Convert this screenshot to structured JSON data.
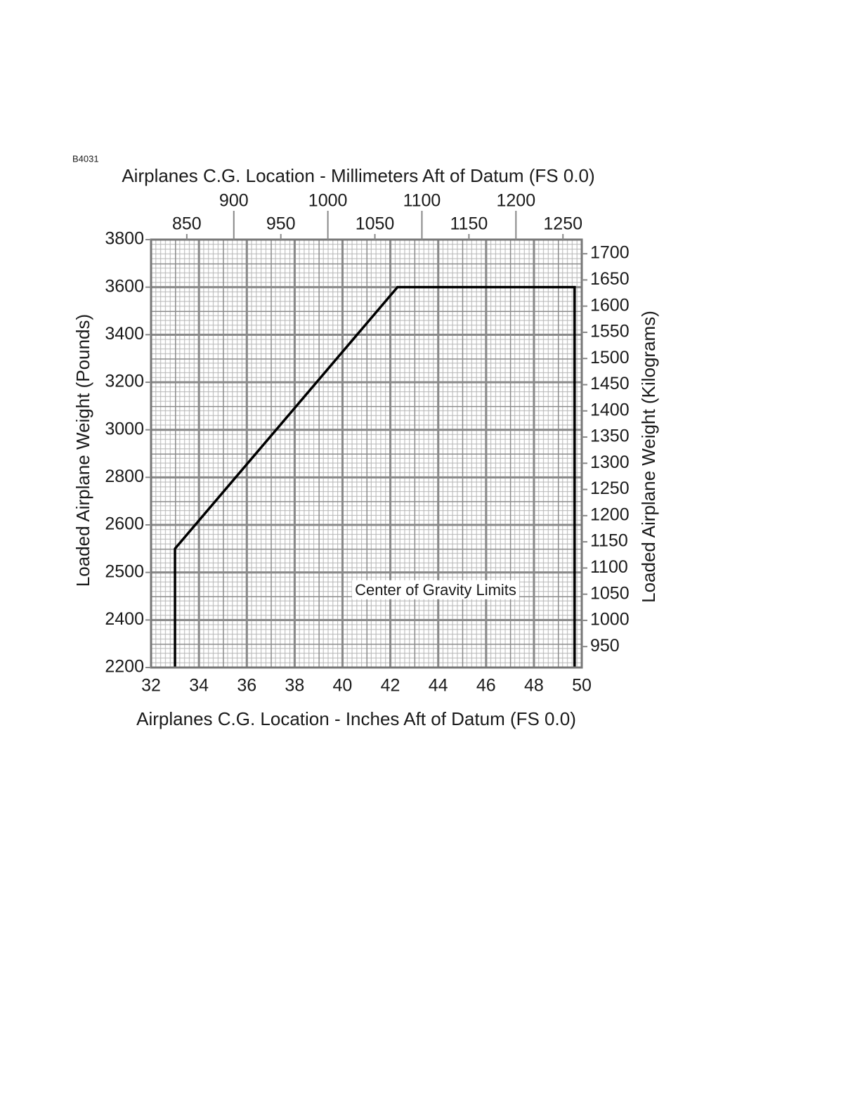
{
  "chart_data": {
    "type": "line",
    "figure_id": "B4031",
    "x2_label": "Airplanes C.G. Location - Millimeters Aft of Datum (FS 0.0)",
    "x_label": "Airplanes C.G. Location - Inches Aft of Datum (FS 0.0)",
    "y_label": "Loaded Airplane Weight (Pounds)",
    "y2_label": "Loaded Airplane Weight (Kilograms)",
    "annotation": "Center of Gravity Limits",
    "x": [
      33,
      33,
      42.3,
      49.7,
      49.7
    ],
    "series": [
      {
        "color": "#000000",
        "values": [
          2200,
          2550,
          3600,
          3600,
          2200
        ]
      }
    ],
    "xlim": [
      32,
      50
    ],
    "xticks": [
      32,
      34,
      36,
      38,
      40,
      42,
      44,
      46,
      48,
      50
    ],
    "x2lim": [
      812,
      1270
    ],
    "x2ticks": [
      850,
      900,
      950,
      1000,
      1050,
      1100,
      1150,
      1200,
      1250
    ],
    "ylim": [
      2200,
      3800
    ],
    "yticks": [
      2200,
      2400,
      2500,
      2600,
      2800,
      3000,
      3200,
      3400,
      3600,
      3800
    ],
    "y_scale": "piecewise",
    "y2lim": [
      910,
      1727
    ],
    "y2ticks": [
      950,
      1000,
      1050,
      1100,
      1150,
      1200,
      1250,
      1300,
      1350,
      1400,
      1450,
      1500,
      1550,
      1600,
      1650,
      1700
    ],
    "grid": true
  }
}
